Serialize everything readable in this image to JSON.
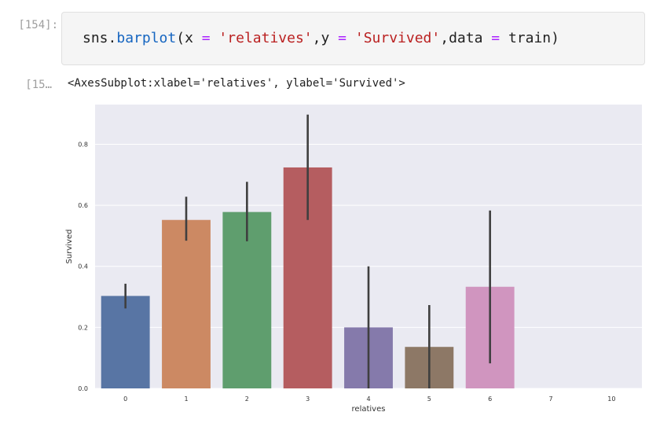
{
  "cell_in": {
    "prompt": "[154]:",
    "code": {
      "fn_obj": "sns",
      "dot": ".",
      "fn_name": "barplot",
      "open": "(",
      "arg1_name": "x ",
      "eq1": "=",
      "arg1_val": " 'relatives'",
      "comma1": ",",
      "arg2_name": "y ",
      "eq2": "=",
      "arg2_val": " 'Survived'",
      "comma2": ",",
      "arg3_name": "data ",
      "eq3": "=",
      "arg3_val": " train",
      "close": ")"
    }
  },
  "cell_out": {
    "prompt": "[15…",
    "text": "<AxesSubplot:xlabel='relatives', ylabel='Survived'>"
  },
  "chart_data": {
    "type": "bar",
    "categories": [
      "0",
      "1",
      "2",
      "3",
      "4",
      "5",
      "6",
      "7",
      "10"
    ],
    "values": [
      0.303,
      0.552,
      0.578,
      0.724,
      0.2,
      0.136,
      0.333,
      0,
      0
    ],
    "error_low": [
      0.262,
      0.484,
      0.482,
      0.552,
      0.0,
      0.0,
      0.082,
      0,
      0
    ],
    "error_high": [
      0.343,
      0.628,
      0.677,
      0.897,
      0.4,
      0.273,
      0.583,
      0,
      0
    ],
    "colors": [
      "#5875a4",
      "#cc8963",
      "#5f9e6e",
      "#b55d60",
      "#857aab",
      "#8d7866",
      "#d095bf",
      "#8c8c8c",
      "#c4b87a"
    ],
    "xlabel": "relatives",
    "ylabel": "Survived",
    "ylim": [
      0,
      0.93
    ],
    "yticks": [
      0.0,
      0.2,
      0.4,
      0.6,
      0.8
    ],
    "ytick_labels": [
      "0.0",
      "0.2",
      "0.4",
      "0.6",
      "0.8"
    ],
    "grid": true,
    "background": "#eaeaf2",
    "errorbar_color": "#3f3f3f"
  }
}
